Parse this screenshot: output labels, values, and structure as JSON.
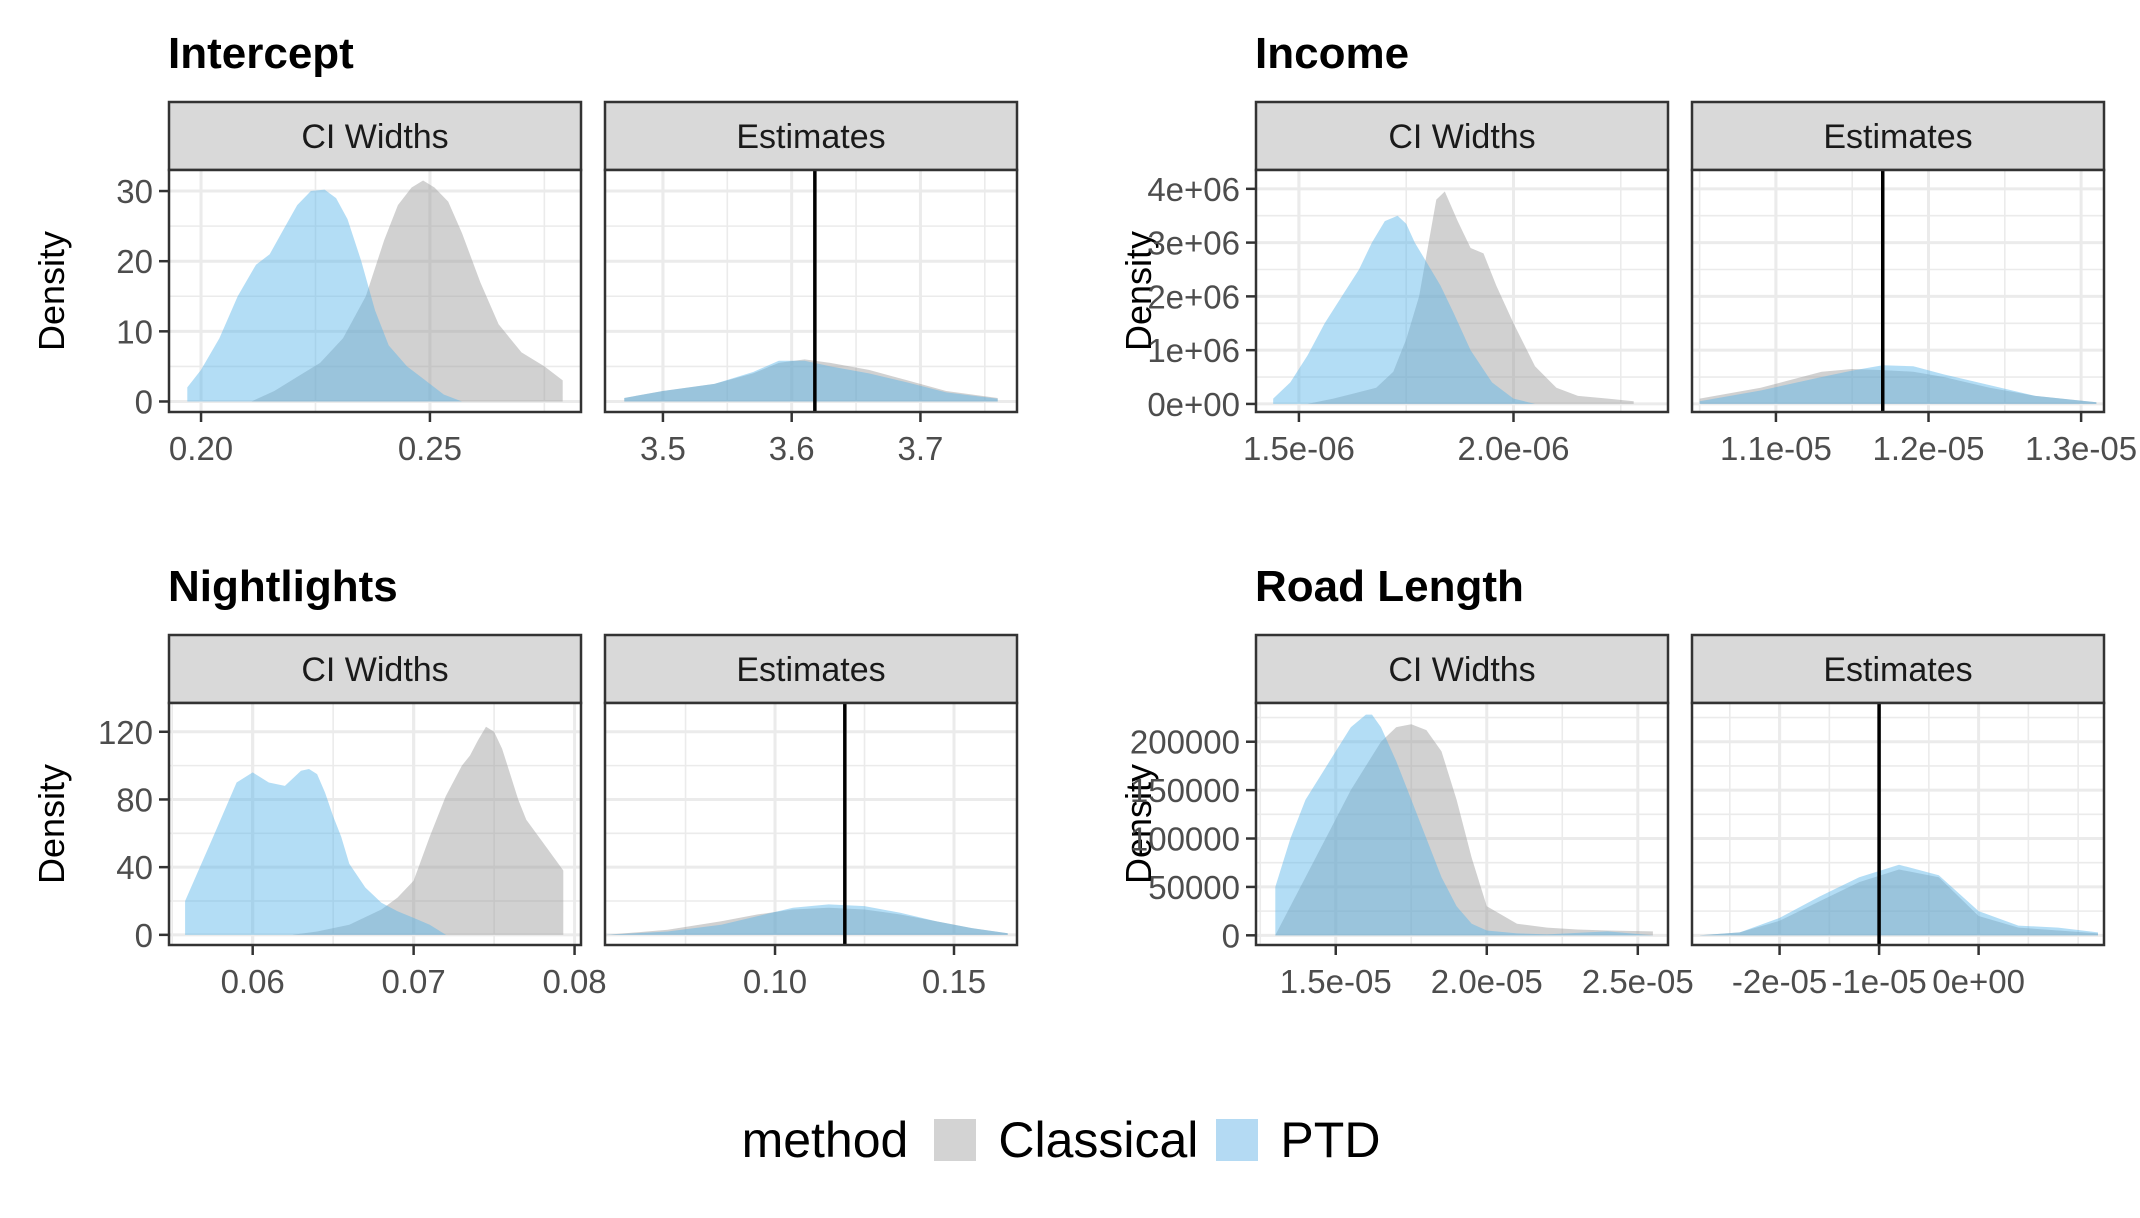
{
  "chart_data": [
    {
      "type": "area",
      "title": "Intercept",
      "ylabel": "Density",
      "panels": [
        {
          "strip": "CI Widths",
          "xlim": [
            0.193,
            0.283
          ],
          "ylim": [
            -1.5,
            33
          ],
          "xticks": [
            0.2,
            0.25
          ],
          "xtick_labels": [
            "0.20",
            "0.25"
          ],
          "yticks": [
            0,
            10,
            20,
            30
          ],
          "ytick_labels": [
            "0",
            "10",
            "20",
            "30"
          ],
          "series": [
            {
              "name": "Classical",
              "x": [
                0.211,
                0.216,
                0.221,
                0.226,
                0.231,
                0.236,
                0.24,
                0.243,
                0.246,
                0.2485,
                0.251,
                0.254,
                0.257,
                0.261,
                0.265,
                0.27,
                0.275,
                0.279
              ],
              "y": [
                0,
                1.5,
                3.5,
                5.5,
                9,
                15,
                23,
                28,
                30.5,
                31.5,
                30.5,
                28.5,
                24,
                17,
                11,
                7,
                5,
                3
              ]
            },
            {
              "name": "PTD",
              "x": [
                0.197,
                0.2,
                0.204,
                0.208,
                0.212,
                0.215,
                0.218,
                0.221,
                0.224,
                0.227,
                0.2295,
                0.232,
                0.235,
                0.238,
                0.241,
                0.245,
                0.249,
                0.253,
                0.257
              ],
              "y": [
                2,
                4.5,
                9,
                15,
                19.5,
                21,
                24.5,
                28,
                30,
                30.2,
                29,
                26,
                20,
                13,
                8,
                5,
                3,
                1,
                0
              ]
            }
          ]
        },
        {
          "strip": "Estimates",
          "xlim": [
            3.455,
            3.775
          ],
          "ylim": [
            -1.5,
            33
          ],
          "xticks": [
            3.5,
            3.6,
            3.7
          ],
          "xtick_labels": [
            "3.5",
            "3.6",
            "3.7"
          ],
          "vline": 3.618,
          "series": [
            {
              "name": "Classical",
              "x": [
                3.47,
                3.5,
                3.54,
                3.57,
                3.59,
                3.61,
                3.63,
                3.66,
                3.69,
                3.72,
                3.76
              ],
              "y": [
                0.5,
                1.5,
                2.5,
                4.0,
                5.5,
                6.0,
                5.5,
                4.5,
                3.0,
                1.5,
                0.5
              ]
            },
            {
              "name": "PTD",
              "x": [
                3.47,
                3.5,
                3.54,
                3.57,
                3.59,
                3.61,
                3.63,
                3.66,
                3.69,
                3.72,
                3.76
              ],
              "y": [
                0.5,
                1.5,
                2.5,
                4.2,
                5.8,
                5.8,
                5.0,
                4.0,
                2.7,
                1.3,
                0.4
              ]
            }
          ]
        }
      ]
    },
    {
      "type": "area",
      "title": "Income",
      "ylabel": "Density",
      "panels": [
        {
          "strip": "CI Widths",
          "xlim": [
            1.4e-06,
            2.36e-06
          ],
          "ylim": [
            -150000,
            4350000
          ],
          "xticks": [
            1.5e-06,
            2e-06
          ],
          "xtick_labels": [
            "1.5e-06",
            "2.0e-06"
          ],
          "yticks": [
            0,
            1000000,
            2000000,
            3000000,
            4000000
          ],
          "ytick_labels": [
            "0e+00",
            "1e+06",
            "2e+06",
            "3e+06",
            "4e+06"
          ],
          "series": [
            {
              "name": "Classical",
              "x": [
                1.52e-06,
                1.58e-06,
                1.63e-06,
                1.68e-06,
                1.72e-06,
                1.75e-06,
                1.78e-06,
                1.8e-06,
                1.82e-06,
                1.84e-06,
                1.87e-06,
                1.9e-06,
                1.93e-06,
                1.96e-06,
                2e-06,
                2.05e-06,
                2.1e-06,
                2.15e-06,
                2.22e-06,
                2.28e-06
              ],
              "y": [
                0,
                100000,
                200000,
                300000,
                600000,
                1200000,
                2000000,
                2900000,
                3800000,
                3950000,
                3400000,
                2900000,
                2800000,
                2200000,
                1500000,
                700000,
                300000,
                150000,
                100000,
                50000
              ]
            },
            {
              "name": "PTD",
              "x": [
                1.44e-06,
                1.48e-06,
                1.52e-06,
                1.56e-06,
                1.6e-06,
                1.64e-06,
                1.67e-06,
                1.7e-06,
                1.73e-06,
                1.75e-06,
                1.77e-06,
                1.8e-06,
                1.83e-06,
                1.86e-06,
                1.9e-06,
                1.95e-06,
                2e-06,
                2.05e-06
              ],
              "y": [
                100000,
                400000,
                900000,
                1500000,
                2000000,
                2500000,
                3000000,
                3400000,
                3500000,
                3350000,
                3000000,
                2600000,
                2200000,
                1700000,
                1000000,
                400000,
                100000,
                0
              ]
            }
          ]
        },
        {
          "strip": "Estimates",
          "xlim": [
            1.045e-05,
            1.315e-05
          ],
          "ylim": [
            -150000,
            4350000
          ],
          "xticks": [
            1.1e-05,
            1.2e-05,
            1.3e-05
          ],
          "xtick_labels": [
            "1.1e-05",
            "1.2e-05",
            "1.3e-05"
          ],
          "vline": 1.17e-05,
          "series": [
            {
              "name": "Classical",
              "x": [
                1.05e-05,
                1.09e-05,
                1.13e-05,
                1.15e-05,
                1.17e-05,
                1.19e-05,
                1.21e-05,
                1.24e-05,
                1.27e-05,
                1.31e-05
              ],
              "y": [
                100000,
                300000,
                600000,
                650000,
                630000,
                600000,
                500000,
                300000,
                150000,
                30000
              ]
            },
            {
              "name": "PTD",
              "x": [
                1.05e-05,
                1.09e-05,
                1.13e-05,
                1.15e-05,
                1.17e-05,
                1.19e-05,
                1.21e-05,
                1.24e-05,
                1.27e-05,
                1.31e-05
              ],
              "y": [
                50000,
                250000,
                500000,
                620000,
                720000,
                700000,
                550000,
                350000,
                150000,
                30000
              ]
            }
          ]
        }
      ]
    },
    {
      "type": "area",
      "title": "Nightlights",
      "ylabel": "Density",
      "panels": [
        {
          "strip": "CI Widths",
          "xlim": [
            0.0548,
            0.0804
          ],
          "ylim": [
            -6,
            137
          ],
          "xticks": [
            0.06,
            0.07,
            0.08
          ],
          "xtick_labels": [
            "0.06",
            "0.07",
            "0.08"
          ],
          "yticks": [
            0,
            40,
            80,
            120
          ],
          "ytick_labels": [
            "0",
            "40",
            "80",
            "120"
          ],
          "series": [
            {
              "name": "Classical",
              "x": [
                0.0625,
                0.064,
                0.066,
                0.068,
                0.069,
                0.07,
                0.071,
                0.072,
                0.073,
                0.0735,
                0.074,
                0.0745,
                0.075,
                0.0755,
                0.076,
                0.0765,
                0.077,
                0.078,
                0.0793
              ],
              "y": [
                0,
                2,
                6,
                15,
                22,
                32,
                58,
                82,
                100,
                106,
                115,
                123,
                120,
                110,
                95,
                80,
                68,
                55,
                38
              ]
            },
            {
              "name": "PTD",
              "x": [
                0.0558,
                0.0575,
                0.059,
                0.06,
                0.061,
                0.062,
                0.063,
                0.0635,
                0.064,
                0.0645,
                0.065,
                0.0655,
                0.066,
                0.067,
                0.068,
                0.069,
                0.07,
                0.071,
                0.072
              ],
              "y": [
                20,
                57,
                90,
                96,
                90,
                88,
                97,
                98,
                95,
                84,
                70,
                58,
                42,
                28,
                19,
                14,
                10,
                6,
                0
              ]
            }
          ]
        },
        {
          "strip": "Estimates",
          "xlim": [
            0.0525,
            0.1676
          ],
          "ylim": [
            -6,
            137
          ],
          "xticks": [
            0.1,
            0.15
          ],
          "xtick_labels": [
            "0.10",
            "0.15"
          ],
          "vline": 0.1195,
          "series": [
            {
              "name": "Classical",
              "x": [
                0.053,
                0.07,
                0.085,
                0.095,
                0.105,
                0.115,
                0.125,
                0.135,
                0.145,
                0.155,
                0.165
              ],
              "y": [
                0,
                3,
                8,
                12,
                15,
                16,
                15,
                12,
                8,
                4,
                1
              ]
            },
            {
              "name": "PTD",
              "x": [
                0.053,
                0.07,
                0.085,
                0.095,
                0.105,
                0.115,
                0.125,
                0.135,
                0.145,
                0.155,
                0.165
              ],
              "y": [
                0,
                2,
                6,
                11,
                16,
                18,
                17,
                13,
                8,
                4,
                1
              ]
            }
          ]
        }
      ]
    },
    {
      "type": "area",
      "title": "Road Length",
      "ylabel": "Density",
      "panels": [
        {
          "strip": "CI Widths",
          "xlim": [
            1.236e-05,
            2.6e-05
          ],
          "ylim": [
            -10000,
            240000
          ],
          "xticks": [
            1.5e-05,
            2e-05,
            2.5e-05
          ],
          "xtick_labels": [
            "1.5e-05",
            "2.0e-05",
            "2.5e-05"
          ],
          "yticks": [
            0,
            50000,
            100000,
            150000,
            200000
          ],
          "ytick_labels": [
            "0",
            "50000",
            "100000",
            "150000",
            "200000"
          ],
          "series": [
            {
              "name": "Classical",
              "x": [
                1.3e-05,
                1.35e-05,
                1.4e-05,
                1.45e-05,
                1.5e-05,
                1.55e-05,
                1.6e-05,
                1.65e-05,
                1.7e-05,
                1.75e-05,
                1.8e-05,
                1.85e-05,
                1.9e-05,
                1.95e-05,
                2e-05,
                2.1e-05,
                2.2e-05,
                2.3e-05,
                2.4e-05,
                2.55e-05
              ],
              "y": [
                0,
                30000,
                60000,
                90000,
                120000,
                150000,
                175000,
                200000,
                215000,
                218000,
                212000,
                190000,
                140000,
                80000,
                30000,
                12000,
                8000,
                6000,
                5000,
                4000
              ]
            },
            {
              "name": "PTD",
              "x": [
                1.3e-05,
                1.35e-05,
                1.4e-05,
                1.45e-05,
                1.5e-05,
                1.55e-05,
                1.6e-05,
                1.62e-05,
                1.65e-05,
                1.7e-05,
                1.75e-05,
                1.8e-05,
                1.85e-05,
                1.9e-05,
                1.95e-05,
                2e-05,
                2.1e-05,
                2.2e-05,
                2.4e-05,
                2.55e-05
              ],
              "y": [
                50000,
                100000,
                140000,
                165000,
                190000,
                215000,
                228000,
                228000,
                215000,
                180000,
                140000,
                100000,
                60000,
                30000,
                12000,
                5000,
                2000,
                1000,
                4000,
                0
              ]
            }
          ]
        },
        {
          "strip": "Estimates",
          "xlim": [
            -2.88e-05,
            1.26e-05
          ],
          "ylim": [
            -10000,
            240000
          ],
          "xticks": [
            -2e-05,
            -1e-05,
            0
          ],
          "xtick_labels": [
            "-2e-05",
            "-1e-05",
            "0e+00"
          ],
          "vline": -1e-05,
          "series": [
            {
              "name": "Classical",
              "x": [
                -2.8e-05,
                -2.4e-05,
                -2e-05,
                -1.6e-05,
                -1.2e-05,
                -8e-06,
                -4e-06,
                0.0,
                4e-06,
                8e-06,
                1.2e-05
              ],
              "y": [
                0,
                3000,
                15000,
                35000,
                55000,
                68000,
                60000,
                20000,
                8000,
                5000,
                2000
              ]
            },
            {
              "name": "PTD",
              "x": [
                -2.8e-05,
                -2.4e-05,
                -2e-05,
                -1.6e-05,
                -1.2e-05,
                -8e-06,
                -4e-06,
                0.0,
                4e-06,
                8e-06,
                1.2e-05
              ],
              "y": [
                0,
                3000,
                18000,
                40000,
                60000,
                73000,
                62000,
                25000,
                10000,
                8000,
                3000
              ]
            }
          ]
        }
      ]
    }
  ],
  "legend": {
    "title": "method",
    "items": [
      {
        "label": "Classical",
        "color": "#999999"
      },
      {
        "label": "PTD",
        "color": "#56B4E9"
      }
    ]
  },
  "colors": {
    "Classical": "#999999",
    "PTD": "#56B4E9",
    "strip_fill": "#D9D9D9",
    "grid": "#EBEBEB"
  }
}
